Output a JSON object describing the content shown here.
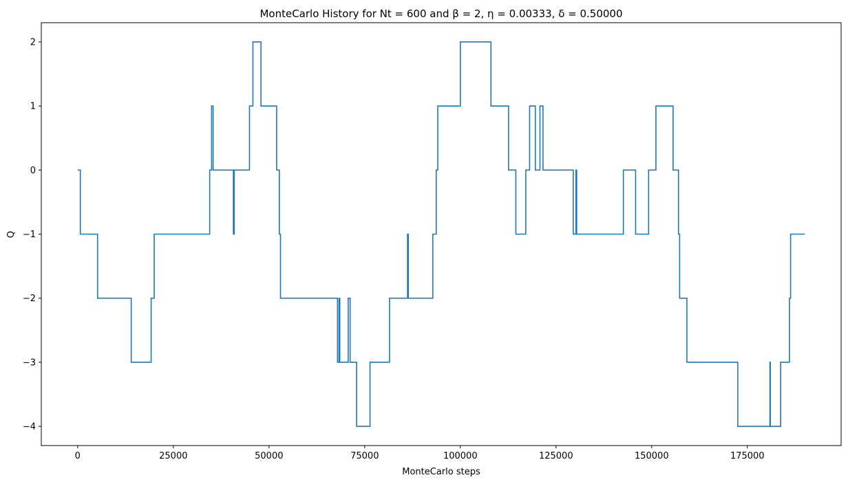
{
  "chart_data": {
    "type": "line",
    "step": "post",
    "title": "MonteCarlo History for Nt = 600 and  β = 2, η = 0.00333, δ = 0.50000",
    "xlabel": "MonteCarlo steps",
    "ylabel": "Q",
    "xlim": [
      -9500,
      199500
    ],
    "ylim": [
      -4.3,
      2.3
    ],
    "xticks": [
      0,
      25000,
      50000,
      75000,
      100000,
      125000,
      150000,
      175000
    ],
    "xtick_labels": [
      "0",
      "25000",
      "50000",
      "75000",
      "100000",
      "125000",
      "150000",
      "175000"
    ],
    "yticks": [
      2,
      1,
      0,
      -1,
      -2,
      -3,
      -4
    ],
    "ytick_labels": [
      "2",
      "1",
      "0",
      "−1",
      "−2",
      "−3",
      "−4"
    ],
    "grid": false,
    "legend": false,
    "color": "#1f77b4",
    "series": [
      {
        "x": [
          0,
          700,
          5200,
          14000,
          19200,
          20000,
          34500,
          35000,
          35400,
          35500,
          40700,
          40900,
          41000,
          44900,
          45500,
          45800,
          47900,
          52000,
          52700,
          53000,
          53200,
          67900,
          68300,
          68500,
          68900,
          70700,
          71200,
          72900,
          73400,
          76400,
          81500,
          86200,
          86400,
          86500,
          92800,
          93700,
          94100,
          100000,
          108000,
          112600,
          114500,
          117100,
          118100,
          119600,
          120800,
          121600,
          123300,
          129500,
          130200,
          130400,
          130600,
          142600,
          145800,
          149200,
          151100,
          155600,
          157000,
          157300,
          157600,
          159200,
          172500,
          180900,
          181000,
          181300,
          183700,
          186000,
          186300,
          190000
        ],
        "y": [
          0,
          -1,
          -2,
          -3,
          -2,
          -1,
          0,
          1,
          0,
          0,
          -1,
          0,
          0,
          1,
          1,
          2,
          1,
          0,
          -1,
          -2,
          -2,
          -3,
          -2,
          -3,
          -3,
          -2,
          -3,
          -4,
          -4,
          -3,
          -2,
          -1,
          -2,
          -2,
          -1,
          0,
          1,
          2,
          1,
          0,
          -1,
          0,
          1,
          0,
          1,
          0,
          0,
          -1,
          0,
          -1,
          -1,
          0,
          -1,
          0,
          1,
          0,
          -1,
          -2,
          -2,
          -3,
          -4,
          -3,
          -4,
          -4,
          -3,
          -2,
          -1,
          -1
        ]
      }
    ]
  }
}
